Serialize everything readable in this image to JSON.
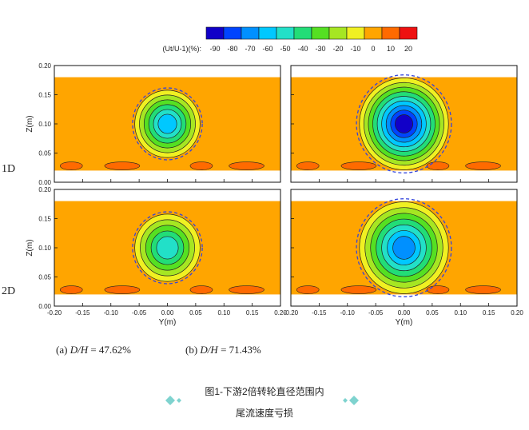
{
  "chart_data": {
    "type": "contour",
    "colorbar": {
      "label": "(Ut/U-1)(%):",
      "ticks": [
        "-90",
        "-80",
        "-70",
        "-60",
        "-50",
        "-40",
        "-30",
        "-20",
        "-10",
        "0",
        "10",
        "20"
      ],
      "colors": [
        "#1100c8",
        "#0044ff",
        "#0090ff",
        "#00c8ff",
        "#22e0c8",
        "#22dd77",
        "#55e022",
        "#a6e622",
        "#f0f022",
        "#ffa500",
        "#ff6a00",
        "#ee1111"
      ]
    },
    "row_labels": [
      "1D",
      "2D"
    ],
    "x_ticks": [
      "-0.20",
      "-0.15",
      "-0.10",
      "-0.05",
      "0.00",
      "0.05",
      "0.10",
      "0.15",
      "0.20"
    ],
    "y_ticks": [
      "0.20",
      "0.15",
      "0.10",
      "0.05",
      "0.00"
    ],
    "xlabel": "Y(m)",
    "ylabel": "Z(m)",
    "xlim": [
      -0.2,
      0.2
    ],
    "ylim": [
      0,
      0.2
    ],
    "background_level": 0,
    "panels": [
      {
        "row": "1D",
        "column": "a",
        "center": [
          0.0,
          0.1
        ],
        "radius": 0.055,
        "min_deficit": -60,
        "domain_z": [
          0.02,
          0.18
        ]
      },
      {
        "row": "1D",
        "column": "b",
        "center": [
          0.0,
          0.1
        ],
        "radius": 0.075,
        "min_deficit": -90,
        "domain_z": [
          0.02,
          0.18
        ]
      },
      {
        "row": "2D",
        "column": "a",
        "center": [
          0.0,
          0.1
        ],
        "radius": 0.055,
        "min_deficit": -50,
        "domain_z": [
          0.02,
          0.18
        ]
      },
      {
        "row": "2D",
        "column": "b",
        "center": [
          0.0,
          0.1
        ],
        "radius": 0.075,
        "min_deficit": -70,
        "domain_z": [
          0.02,
          0.18
        ]
      }
    ]
  },
  "subcaptions": {
    "a_prefix": "(a) ",
    "a_var": "D/H",
    "a_value": " = 47.62%",
    "b_prefix": "(b) ",
    "b_var": "D/H",
    "b_value": " = 71.43%"
  },
  "figure_caption": {
    "line1": "图1-下游2倍转轮直径范围内",
    "line2": "尾流速度亏损"
  },
  "decor_colors": {
    "diamond": "#7fd3cf",
    "dash_circle": "#3344dd"
  }
}
